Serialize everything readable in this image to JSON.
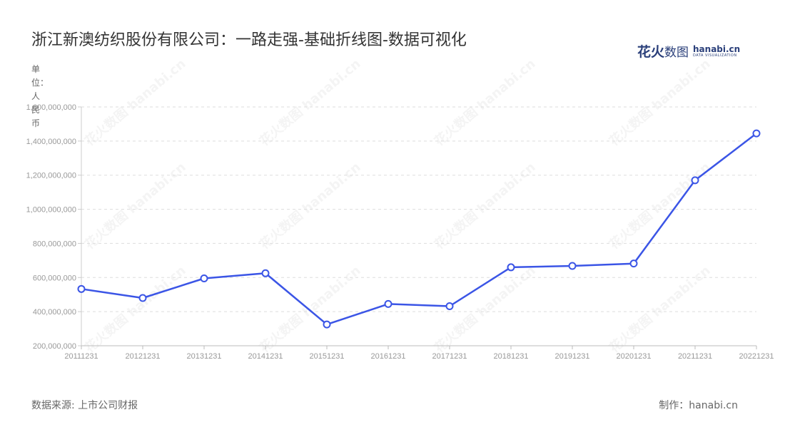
{
  "title": "浙江新澳纺织股份有限公司：一路走强-基础折线图-数据可视化",
  "logo": {
    "cn_bold": "花火",
    "cn_light": "数图",
    "en": "hanabi.cn",
    "en_sub": "DATA VISUALIZATION"
  },
  "unit_label": "单位：人民币",
  "footer": {
    "source": "数据来源: 上市公司财报",
    "credit": "制作：hanabi.cn"
  },
  "watermark_text": "花火数图 hanabi.cn",
  "colors": {
    "line": "#3b55e6",
    "grid": "#dddddd",
    "axis_text": "#999999",
    "title": "#333333"
  },
  "chart_data": {
    "type": "line",
    "title": "浙江新澳纺织股份有限公司：一路走强-基础折线图-数据可视化",
    "ylabel": "单位：人民币",
    "xlabel": "",
    "categories": [
      "20111231",
      "20121231",
      "20131231",
      "20141231",
      "20151231",
      "20161231",
      "20171231",
      "20181231",
      "20191231",
      "20201231",
      "20211231",
      "20221231"
    ],
    "values": [
      533000000,
      480000000,
      595000000,
      625000000,
      325000000,
      445000000,
      432000000,
      660000000,
      668000000,
      682000000,
      1170000000,
      1445000000
    ],
    "ylim": [
      200000000,
      1600000000
    ],
    "yticks": [
      200000000,
      400000000,
      600000000,
      800000000,
      1000000000,
      1200000000,
      1400000000,
      1600000000
    ],
    "ytick_labels": [
      "200,000,000",
      "400,000,000",
      "600,000,000",
      "800,000,000",
      "1,000,000,000",
      "1,200,000,000",
      "1,400,000,000",
      "1,600,000,000"
    ],
    "grid": true,
    "legend": "none"
  }
}
